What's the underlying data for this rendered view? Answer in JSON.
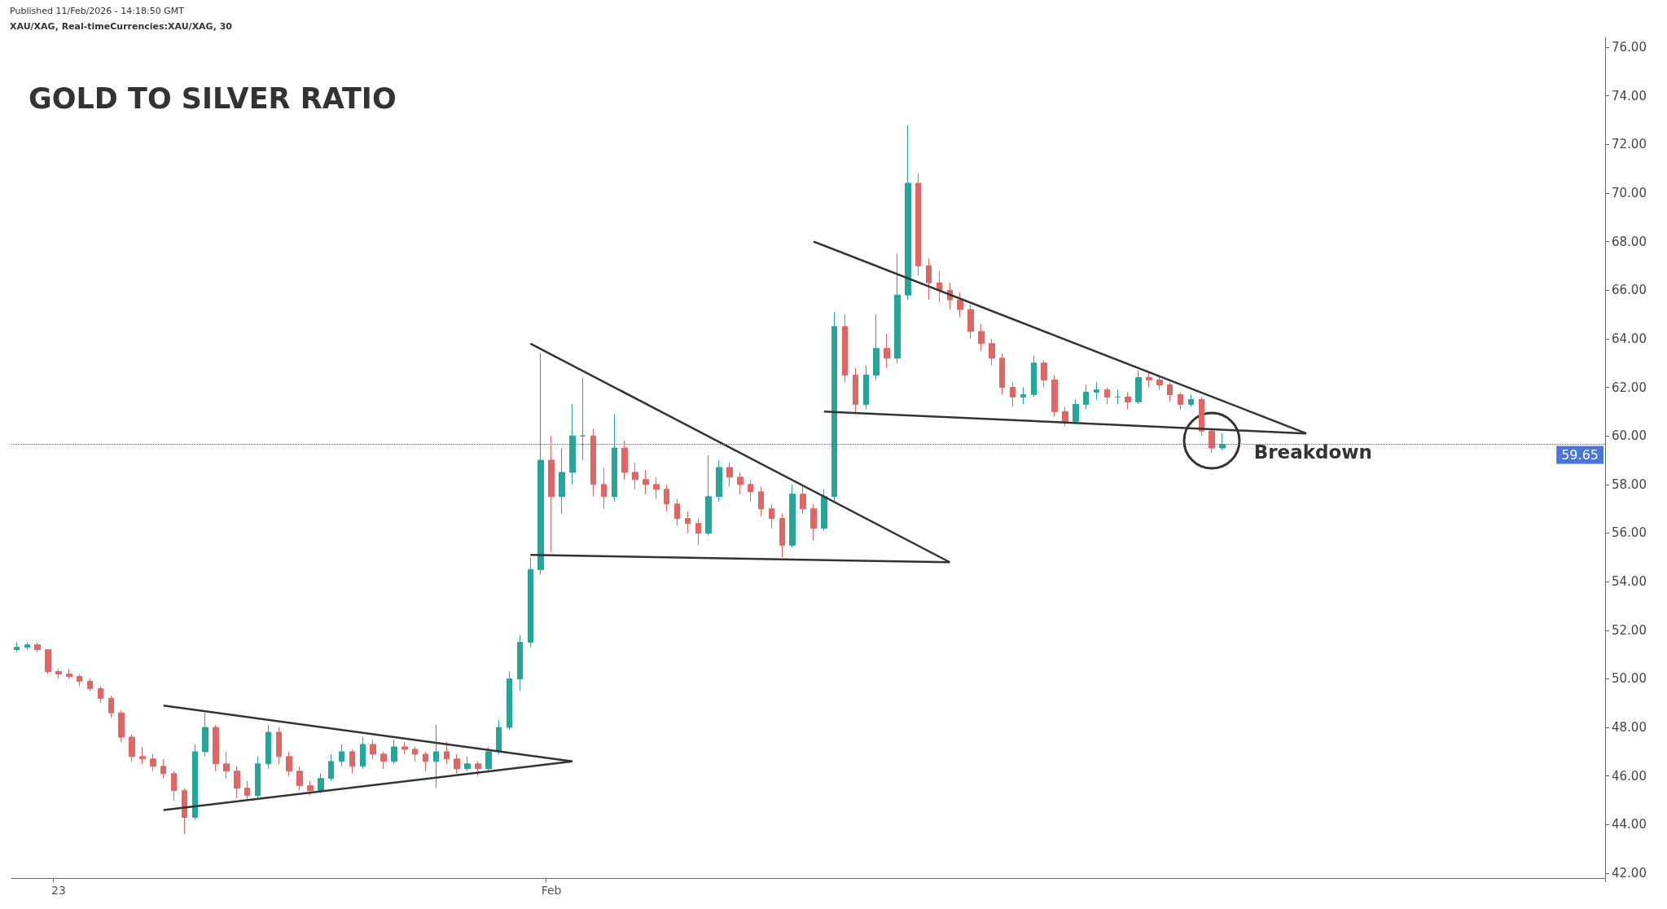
{
  "chart_data": {
    "type": "candlestick",
    "title": "GOLD TO SILVER RATIO",
    "subtitle": "XAU/XAG, Real-timeCurrencies:XAU/XAG, 30",
    "annotations": [
      "Published 11/Feb/2026 - 14:18:50 GMT",
      {
        "text": "Breakdown",
        "y": 59.8
      }
    ],
    "categories": [
      null,
      null,
      null,
      null,
      "23",
      null,
      null,
      null,
      null,
      null,
      null,
      null,
      null,
      null,
      null,
      null,
      null,
      null,
      null,
      null,
      null,
      null,
      null,
      null,
      null,
      null,
      null,
      null,
      null,
      null,
      null,
      null,
      null,
      null,
      null,
      null,
      null,
      null,
      null,
      null,
      null,
      null,
      null,
      null,
      null,
      null,
      null,
      null,
      null,
      null,
      null,
      "Feb",
      null,
      null,
      null,
      null,
      null,
      null,
      null,
      null,
      null,
      null,
      null,
      null,
      null,
      null,
      null,
      null,
      null,
      null,
      null,
      null,
      null,
      null,
      null,
      null,
      null,
      null,
      null,
      null,
      null,
      null,
      null,
      null,
      null,
      null,
      null,
      null,
      null,
      null,
      null,
      null,
      null,
      null,
      null,
      null,
      null,
      null,
      null,
      null,
      null,
      null,
      null,
      null,
      null,
      null,
      null,
      null,
      null,
      null,
      null,
      null,
      null,
      null,
      null,
      null,
      null,
      null,
      null,
      null,
      null,
      null,
      null,
      null,
      null,
      null,
      null,
      null,
      null,
      null,
      null,
      null,
      null,
      null,
      null,
      null,
      null,
      null,
      null,
      null,
      null,
      null,
      null,
      null,
      null,
      null,
      null,
      null,
      null,
      null,
      null,
      null
    ],
    "colors": [
      "#26a69a",
      "#26a69a",
      "#e06666",
      "#e06666",
      "#e06666",
      "#e06666",
      "#e06666",
      "#e06666",
      "#e06666",
      "#e06666",
      "#e06666",
      "#e06666",
      "#e06666",
      "#e06666",
      "#e06666",
      "#e06666",
      "#e06666",
      "#26a69a",
      "#26a69a",
      "#e06666",
      "#e06666",
      "#e06666",
      "#e06666",
      "#26a69a",
      "#26a69a",
      "#e06666",
      "#e06666",
      "#e06666",
      "#e06666",
      "#26a69a",
      "#26a69a",
      "#26a69a",
      "#e06666",
      "#26a69a",
      "#e06666",
      "#e06666",
      "#26a69a",
      "#e06666",
      "#e06666",
      "#e06666",
      "#26a69a",
      "#e06666",
      "#e06666",
      "#26a69a",
      "#e06666",
      "#26a69a",
      "#26a69a",
      "#26a69a",
      "#26a69a",
      "#26a69a",
      "#26a69a",
      "#e06666",
      "#26a69a",
      "#26a69a",
      "#26a69a",
      "#e06666",
      "#e06666",
      "#26a69a",
      "#e06666",
      "#e06666",
      "#e06666",
      "#e06666",
      "#e06666",
      "#e06666",
      "#e06666",
      "#e06666",
      "#26a69a",
      "#26a69a",
      "#e06666",
      "#e06666",
      "#e06666",
      "#e06666",
      "#e06666",
      "#e06666",
      "#26a69a",
      "#e06666",
      "#e06666",
      "#26a69a",
      "#26a69a",
      "#e06666",
      "#e06666",
      "#26a69a",
      "#26a69a",
      "#e06666",
      "#26a69a",
      "#26a69a",
      "#e06666",
      "#e06666",
      "#e06666",
      "#e06666",
      "#e06666",
      "#e06666",
      "#e06666",
      "#e06666",
      "#e06666",
      "#e06666",
      "#26a69a",
      "#26a69a",
      "#e06666",
      "#e06666",
      "#e06666",
      "#26a69a",
      "#26a69a",
      "#26a69a",
      "#e06666",
      "#26a69a",
      "#e06666",
      "#26a69a",
      "#e06666",
      "#e06666",
      "#e06666",
      "#e06666",
      "#26a69a",
      "#e06666",
      "#e06666",
      "#26a69a",
      null,
      null,
      null,
      null,
      null,
      null,
      null,
      null,
      null,
      null,
      null,
      null,
      null,
      null,
      null,
      null,
      null,
      null,
      null,
      null,
      null,
      null,
      null,
      null,
      null,
      null,
      null,
      null,
      null,
      null,
      null,
      null,
      null,
      null,
      null,
      null
    ],
    "ohlc": [
      [
        51.2,
        51.5,
        51.1,
        51.3
      ],
      [
        51.3,
        51.5,
        51.2,
        51.4
      ],
      [
        51.4,
        51.5,
        51.1,
        51.2
      ],
      [
        51.2,
        51.2,
        50.2,
        50.3
      ],
      [
        50.3,
        50.4,
        50.0,
        50.2
      ],
      [
        50.2,
        50.4,
        50.0,
        50.1
      ],
      [
        50.1,
        50.2,
        49.7,
        49.9
      ],
      [
        49.9,
        50.0,
        49.5,
        49.6
      ],
      [
        49.6,
        49.7,
        49.0,
        49.2
      ],
      [
        49.2,
        49.3,
        48.4,
        48.6
      ],
      [
        48.6,
        48.7,
        47.4,
        47.6
      ],
      [
        47.6,
        47.7,
        46.6,
        46.8
      ],
      [
        46.8,
        47.2,
        46.5,
        46.7
      ],
      [
        46.7,
        46.9,
        46.2,
        46.4
      ],
      [
        46.4,
        46.7,
        45.9,
        46.1
      ],
      [
        46.1,
        46.2,
        45.0,
        45.4
      ],
      [
        45.4,
        45.5,
        43.6,
        44.3
      ],
      [
        44.3,
        47.3,
        44.2,
        47.0
      ],
      [
        47.0,
        48.6,
        46.8,
        48.0
      ],
      [
        48.0,
        48.1,
        46.2,
        46.5
      ],
      [
        46.5,
        47.0,
        45.9,
        46.2
      ],
      [
        46.2,
        46.4,
        45.1,
        45.5
      ],
      [
        45.5,
        45.8,
        45.0,
        45.2
      ],
      [
        45.2,
        46.8,
        45.1,
        46.5
      ],
      [
        46.5,
        48.1,
        46.3,
        47.8
      ],
      [
        47.8,
        48.0,
        46.5,
        46.8
      ],
      [
        46.8,
        47.0,
        46.0,
        46.2
      ],
      [
        46.2,
        46.4,
        45.4,
        45.6
      ],
      [
        45.6,
        45.8,
        45.2,
        45.4
      ],
      [
        45.4,
        46.1,
        45.3,
        45.9
      ],
      [
        45.9,
        46.9,
        45.8,
        46.6
      ],
      [
        46.6,
        47.3,
        46.4,
        47.0
      ],
      [
        47.0,
        47.1,
        46.1,
        46.4
      ],
      [
        46.4,
        47.6,
        46.3,
        47.3
      ],
      [
        47.3,
        47.5,
        46.7,
        46.9
      ],
      [
        46.9,
        47.0,
        46.3,
        46.6
      ],
      [
        46.6,
        47.5,
        46.5,
        47.2
      ],
      [
        47.2,
        47.4,
        46.9,
        47.1
      ],
      [
        47.1,
        47.2,
        46.6,
        46.9
      ],
      [
        46.9,
        47.0,
        46.2,
        46.6
      ],
      [
        46.6,
        48.1,
        45.5,
        47.0
      ],
      [
        47.0,
        47.4,
        46.5,
        46.7
      ],
      [
        46.7,
        46.9,
        46.1,
        46.3
      ],
      [
        46.3,
        46.8,
        46.2,
        46.5
      ],
      [
        46.5,
        46.6,
        46.0,
        46.3
      ],
      [
        46.3,
        47.2,
        46.2,
        47.0
      ],
      [
        47.0,
        48.3,
        46.9,
        48.0
      ],
      [
        48.0,
        50.3,
        47.9,
        50.0
      ],
      [
        50.0,
        51.8,
        49.5,
        51.5
      ],
      [
        51.5,
        55.0,
        51.3,
        54.5
      ],
      [
        54.5,
        63.4,
        54.3,
        59.0
      ],
      [
        59.0,
        60.0,
        55.2,
        57.5
      ],
      [
        57.5,
        59.5,
        56.8,
        58.5
      ],
      [
        58.5,
        61.3,
        58.0,
        60.0
      ],
      [
        60.0,
        62.4,
        59.0,
        60.0
      ],
      [
        60.0,
        60.3,
        57.5,
        58.0
      ],
      [
        58.0,
        58.7,
        57.0,
        57.5
      ],
      [
        57.5,
        60.9,
        57.3,
        59.5
      ],
      [
        59.5,
        59.8,
        58.2,
        58.5
      ],
      [
        58.5,
        58.9,
        57.8,
        58.2
      ],
      [
        58.2,
        58.6,
        57.6,
        58.0
      ],
      [
        58.0,
        58.3,
        57.4,
        57.8
      ],
      [
        57.8,
        58.0,
        56.9,
        57.2
      ],
      [
        57.2,
        57.4,
        56.3,
        56.6
      ],
      [
        56.6,
        56.9,
        56.0,
        56.4
      ],
      [
        56.4,
        56.6,
        55.5,
        56.0
      ],
      [
        56.0,
        59.2,
        55.9,
        57.5
      ],
      [
        57.5,
        59.0,
        57.3,
        58.7
      ],
      [
        58.7,
        58.9,
        57.9,
        58.3
      ],
      [
        58.3,
        58.5,
        57.6,
        58.0
      ],
      [
        58.0,
        58.2,
        57.3,
        57.7
      ],
      [
        57.7,
        57.9,
        56.7,
        57.0
      ],
      [
        57.0,
        57.2,
        56.2,
        56.6
      ],
      [
        56.6,
        56.8,
        55.0,
        55.5
      ],
      [
        55.5,
        58.0,
        55.4,
        57.6
      ],
      [
        57.6,
        57.9,
        56.8,
        57.0
      ],
      [
        57.0,
        57.2,
        55.7,
        56.2
      ],
      [
        56.2,
        57.8,
        56.1,
        57.5
      ],
      [
        57.5,
        65.1,
        57.3,
        64.5
      ],
      [
        64.5,
        65.0,
        62.2,
        62.5
      ],
      [
        62.5,
        62.8,
        60.9,
        61.3
      ],
      [
        61.3,
        62.9,
        61.1,
        62.5
      ],
      [
        62.5,
        65.0,
        62.3,
        63.6
      ],
      [
        63.6,
        64.2,
        62.8,
        63.2
      ],
      [
        63.2,
        67.5,
        63.0,
        65.8
      ],
      [
        65.8,
        72.8,
        65.6,
        70.4
      ],
      [
        70.4,
        70.8,
        66.6,
        67.0
      ],
      [
        67.0,
        67.3,
        65.6,
        66.3
      ],
      [
        66.3,
        66.8,
        65.5,
        66.0
      ],
      [
        66.0,
        66.3,
        65.2,
        65.6
      ],
      [
        65.6,
        65.9,
        64.9,
        65.2
      ],
      [
        65.2,
        65.4,
        64.0,
        64.3
      ],
      [
        64.3,
        64.6,
        63.5,
        63.8
      ],
      [
        63.8,
        64.0,
        62.9,
        63.2
      ],
      [
        63.2,
        63.4,
        61.7,
        62.0
      ],
      [
        62.0,
        62.2,
        61.2,
        61.6
      ],
      [
        61.6,
        62.0,
        61.3,
        61.7
      ],
      [
        61.7,
        63.3,
        61.6,
        63.0
      ],
      [
        63.0,
        63.1,
        62.0,
        62.3
      ],
      [
        62.3,
        62.5,
        60.8,
        61.0
      ],
      [
        61.0,
        61.2,
        60.4,
        60.6
      ],
      [
        60.6,
        61.5,
        60.5,
        61.3
      ],
      [
        61.3,
        62.1,
        61.1,
        61.8
      ],
      [
        61.8,
        62.2,
        61.5,
        61.9
      ],
      [
        61.9,
        62.0,
        61.3,
        61.6
      ],
      [
        61.6,
        61.9,
        61.3,
        61.6
      ],
      [
        61.6,
        61.8,
        61.1,
        61.4
      ],
      [
        61.4,
        62.7,
        61.3,
        62.4
      ],
      [
        62.4,
        62.6,
        62.0,
        62.3
      ],
      [
        62.3,
        62.5,
        61.9,
        62.1
      ],
      [
        62.1,
        62.2,
        61.4,
        61.7
      ],
      [
        61.7,
        61.8,
        61.1,
        61.3
      ],
      [
        61.3,
        61.7,
        61.2,
        61.5
      ],
      [
        61.5,
        61.6,
        60.0,
        60.2
      ],
      [
        60.2,
        60.3,
        59.3,
        59.5
      ],
      [
        59.5,
        60.1,
        59.4,
        59.65
      ],
      null,
      null,
      null,
      null,
      null,
      null,
      null,
      null,
      null,
      null,
      null,
      null,
      null,
      null,
      null,
      null,
      null,
      null,
      null,
      null,
      null,
      null,
      null,
      null,
      null,
      null,
      null,
      null,
      null,
      null,
      null,
      null,
      null,
      null,
      null,
      null
    ],
    "series": [
      {
        "type": "line",
        "color": "#333333",
        "values": [
          null,
          null,
          null,
          null,
          null,
          null,
          null,
          null,
          null,
          null,
          null,
          null,
          null,
          null,
          48.9,
          null,
          null,
          null,
          null,
          null,
          null,
          null,
          null,
          null,
          null,
          null,
          null,
          null,
          null,
          null,
          null,
          null,
          null,
          null,
          null,
          null,
          null,
          null,
          null,
          null,
          null,
          null,
          null,
          null,
          null,
          null,
          null,
          null,
          null,
          null,
          null,
          null,
          null,
          46.6,
          null,
          null,
          null,
          null,
          null,
          null,
          null,
          null,
          null,
          null,
          null,
          null,
          null,
          null,
          null,
          null,
          null,
          null,
          null,
          null,
          null,
          null,
          null,
          null,
          null,
          null,
          null,
          null,
          null,
          null,
          null,
          null,
          null,
          null,
          null,
          null,
          null,
          null,
          null,
          null,
          null,
          null,
          null,
          null,
          null,
          null,
          null,
          null,
          null,
          null,
          null,
          null,
          null,
          null,
          null,
          null,
          null,
          null,
          null,
          null,
          null,
          null,
          null,
          null,
          null,
          null,
          null,
          null,
          null,
          null,
          null,
          null,
          null,
          null,
          null,
          null,
          null,
          null,
          null,
          null,
          null,
          null,
          null,
          null,
          null,
          null,
          null,
          null,
          null,
          null,
          null,
          null,
          null,
          null,
          null,
          null,
          null,
          null
        ]
      },
      {
        "type": "line",
        "color": "#333333",
        "values": [
          null,
          null,
          null,
          null,
          null,
          null,
          null,
          null,
          null,
          null,
          null,
          null,
          null,
          null,
          44.6,
          null,
          null,
          null,
          null,
          null,
          null,
          null,
          null,
          null,
          null,
          null,
          null,
          null,
          null,
          null,
          null,
          null,
          null,
          null,
          null,
          null,
          null,
          null,
          null,
          null,
          null,
          null,
          null,
          null,
          null,
          null,
          null,
          null,
          null,
          null,
          null,
          null,
          null,
          46.6,
          null,
          null,
          null,
          null,
          null,
          null,
          null,
          null,
          null,
          null,
          null,
          null,
          null,
          null,
          null,
          null,
          null,
          null,
          null,
          null,
          null,
          null,
          null,
          null,
          null,
          null,
          null,
          null,
          null,
          null,
          null,
          null,
          null,
          null,
          null,
          null,
          null,
          null,
          null,
          null,
          null,
          null,
          null,
          null,
          null,
          null,
          null,
          null,
          null,
          null,
          null,
          null,
          null,
          null,
          null,
          null,
          null,
          null,
          null,
          null,
          null,
          null,
          null,
          null,
          null,
          null,
          null,
          null,
          null,
          null,
          null,
          null,
          null,
          null,
          null,
          null,
          null,
          null,
          null,
          null,
          null,
          null,
          null,
          null,
          null,
          null,
          null,
          null,
          null,
          null,
          null,
          null,
          null,
          null,
          null,
          null,
          null,
          null
        ]
      },
      {
        "type": "line",
        "color": "#333333",
        "values": [
          null,
          null,
          null,
          null,
          null,
          null,
          null,
          null,
          null,
          null,
          null,
          null,
          null,
          null,
          null,
          null,
          null,
          null,
          null,
          null,
          null,
          null,
          null,
          null,
          null,
          null,
          null,
          null,
          null,
          null,
          null,
          null,
          null,
          null,
          null,
          null,
          null,
          null,
          null,
          null,
          null,
          null,
          null,
          null,
          null,
          null,
          null,
          null,
          null,
          63.8,
          null,
          null,
          null,
          null,
          null,
          null,
          null,
          null,
          null,
          null,
          null,
          null,
          null,
          null,
          null,
          null,
          null,
          null,
          null,
          null,
          null,
          null,
          null,
          null,
          null,
          null,
          null,
          null,
          null,
          null,
          null,
          null,
          null,
          null,
          null,
          null,
          null,
          null,
          null,
          54.8,
          null,
          null,
          null,
          null,
          null,
          null,
          null,
          null,
          null,
          null,
          null,
          null,
          null,
          null,
          null,
          null,
          null,
          null,
          null,
          null,
          null,
          null,
          null,
          null,
          null,
          null,
          null,
          null,
          null,
          null,
          null,
          null,
          null,
          null,
          null,
          null,
          null,
          null,
          null,
          null,
          null,
          null,
          null,
          null,
          null,
          null,
          null,
          null,
          null,
          null,
          null,
          null,
          null,
          null,
          null,
          null,
          null,
          null,
          null,
          null,
          null,
          null
        ]
      },
      {
        "type": "line",
        "color": "#333333",
        "values": [
          null,
          null,
          null,
          null,
          null,
          null,
          null,
          null,
          null,
          null,
          null,
          null,
          null,
          null,
          null,
          null,
          null,
          null,
          null,
          null,
          null,
          null,
          null,
          null,
          null,
          null,
          null,
          null,
          null,
          null,
          null,
          null,
          null,
          null,
          null,
          null,
          null,
          null,
          null,
          null,
          null,
          null,
          null,
          null,
          null,
          null,
          null,
          null,
          null,
          55.1,
          null,
          null,
          null,
          null,
          null,
          null,
          null,
          null,
          null,
          null,
          null,
          null,
          null,
          null,
          null,
          null,
          null,
          null,
          null,
          null,
          null,
          null,
          null,
          null,
          null,
          null,
          null,
          null,
          null,
          null,
          null,
          null,
          null,
          null,
          null,
          null,
          null,
          null,
          null,
          54.8,
          null,
          null,
          null,
          null,
          null,
          null,
          null,
          null,
          null,
          null,
          null,
          null,
          null,
          null,
          null,
          null,
          null,
          null,
          null,
          null,
          null,
          null,
          null,
          null,
          null,
          null,
          null,
          null,
          null,
          null,
          null,
          null,
          null,
          null,
          null,
          null,
          null,
          null,
          null,
          null,
          null,
          null,
          null,
          null,
          null,
          null,
          null,
          null,
          null,
          null,
          null,
          null,
          null,
          null,
          null,
          null,
          null,
          null,
          null,
          null,
          null,
          null
        ]
      },
      {
        "type": "line",
        "color": "#333333",
        "values": [
          null,
          null,
          null,
          null,
          null,
          null,
          null,
          null,
          null,
          null,
          null,
          null,
          null,
          null,
          null,
          null,
          null,
          null,
          null,
          null,
          null,
          null,
          null,
          null,
          null,
          null,
          null,
          null,
          null,
          null,
          null,
          null,
          null,
          null,
          null,
          null,
          null,
          null,
          null,
          null,
          null,
          null,
          null,
          null,
          null,
          null,
          null,
          null,
          null,
          null,
          null,
          null,
          null,
          null,
          null,
          null,
          null,
          null,
          null,
          null,
          null,
          null,
          null,
          null,
          null,
          null,
          null,
          null,
          null,
          null,
          null,
          null,
          null,
          null,
          null,
          null,
          68.0,
          null,
          null,
          null,
          null,
          null,
          null,
          null,
          null,
          null,
          null,
          null,
          null,
          null,
          null,
          null,
          null,
          null,
          null,
          null,
          null,
          null,
          null,
          null,
          null,
          null,
          null,
          null,
          null,
          null,
          null,
          null,
          null,
          null,
          null,
          null,
          null,
          null,
          null,
          null,
          null,
          null,
          null,
          null,
          null,
          null,
          null,
          60.1,
          null,
          null,
          null,
          null,
          null,
          null,
          null,
          null,
          null,
          null,
          null,
          null,
          null,
          null,
          null,
          null,
          null,
          null,
          null,
          null,
          null,
          null,
          null,
          null,
          null,
          null,
          null,
          null
        ]
      },
      {
        "type": "line",
        "color": "#333333",
        "values": [
          null,
          null,
          null,
          null,
          null,
          null,
          null,
          null,
          null,
          null,
          null,
          null,
          null,
          null,
          null,
          null,
          null,
          null,
          null,
          null,
          null,
          null,
          null,
          null,
          null,
          null,
          null,
          null,
          null,
          null,
          null,
          null,
          null,
          null,
          null,
          null,
          null,
          null,
          null,
          null,
          null,
          null,
          null,
          null,
          null,
          null,
          null,
          null,
          null,
          null,
          null,
          null,
          null,
          null,
          null,
          null,
          null,
          null,
          null,
          null,
          null,
          null,
          null,
          null,
          null,
          null,
          null,
          null,
          null,
          null,
          null,
          null,
          null,
          null,
          null,
          null,
          null,
          61.0,
          null,
          null,
          null,
          null,
          null,
          null,
          null,
          null,
          null,
          null,
          null,
          null,
          null,
          null,
          null,
          null,
          null,
          null,
          null,
          null,
          null,
          null,
          null,
          null,
          null,
          null,
          null,
          null,
          null,
          null,
          null,
          null,
          null,
          null,
          null,
          null,
          null,
          null,
          null,
          null,
          null,
          null,
          null,
          null,
          null,
          60.1,
          null,
          null,
          null,
          null,
          null,
          null,
          null,
          null,
          null,
          null,
          null,
          null,
          null,
          null,
          null,
          null,
          null,
          null,
          null,
          null,
          null,
          null,
          null,
          null,
          null,
          null,
          null,
          null
        ]
      }
    ],
    "ylim": [
      41.8,
      76.4
    ],
    "yticks": [
      {
        "value": 42,
        "label": "42.00"
      },
      {
        "value": 44,
        "label": "44.00"
      },
      {
        "value": 46,
        "label": "46.00"
      },
      {
        "value": 48,
        "label": "48.00"
      },
      {
        "value": 50,
        "label": "50.00"
      },
      {
        "value": 52,
        "label": "52.00"
      },
      {
        "value": 54,
        "label": "54.00"
      },
      {
        "value": 56,
        "label": "56.00"
      },
      {
        "value": 58,
        "label": "58.00"
      },
      {
        "value": 60,
        "label": "60.00"
      },
      {
        "value": 62,
        "label": "62.00"
      },
      {
        "value": 64,
        "label": "64.00"
      },
      {
        "value": 66,
        "label": "66.00"
      },
      {
        "value": 68,
        "label": "68.00"
      },
      {
        "value": 70,
        "label": "70.00"
      },
      {
        "value": 72,
        "label": "72.00"
      },
      {
        "value": 74,
        "label": "74.00"
      },
      {
        "value": 76,
        "label": "76.00"
      }
    ],
    "ref_lines": [
      {
        "axis": "y",
        "value": 59.65,
        "label": "59.65",
        "color": "#4a76d8",
        "line_style": "dotted"
      }
    ],
    "grid": false,
    "marker": "none",
    "line_style": "solid"
  }
}
